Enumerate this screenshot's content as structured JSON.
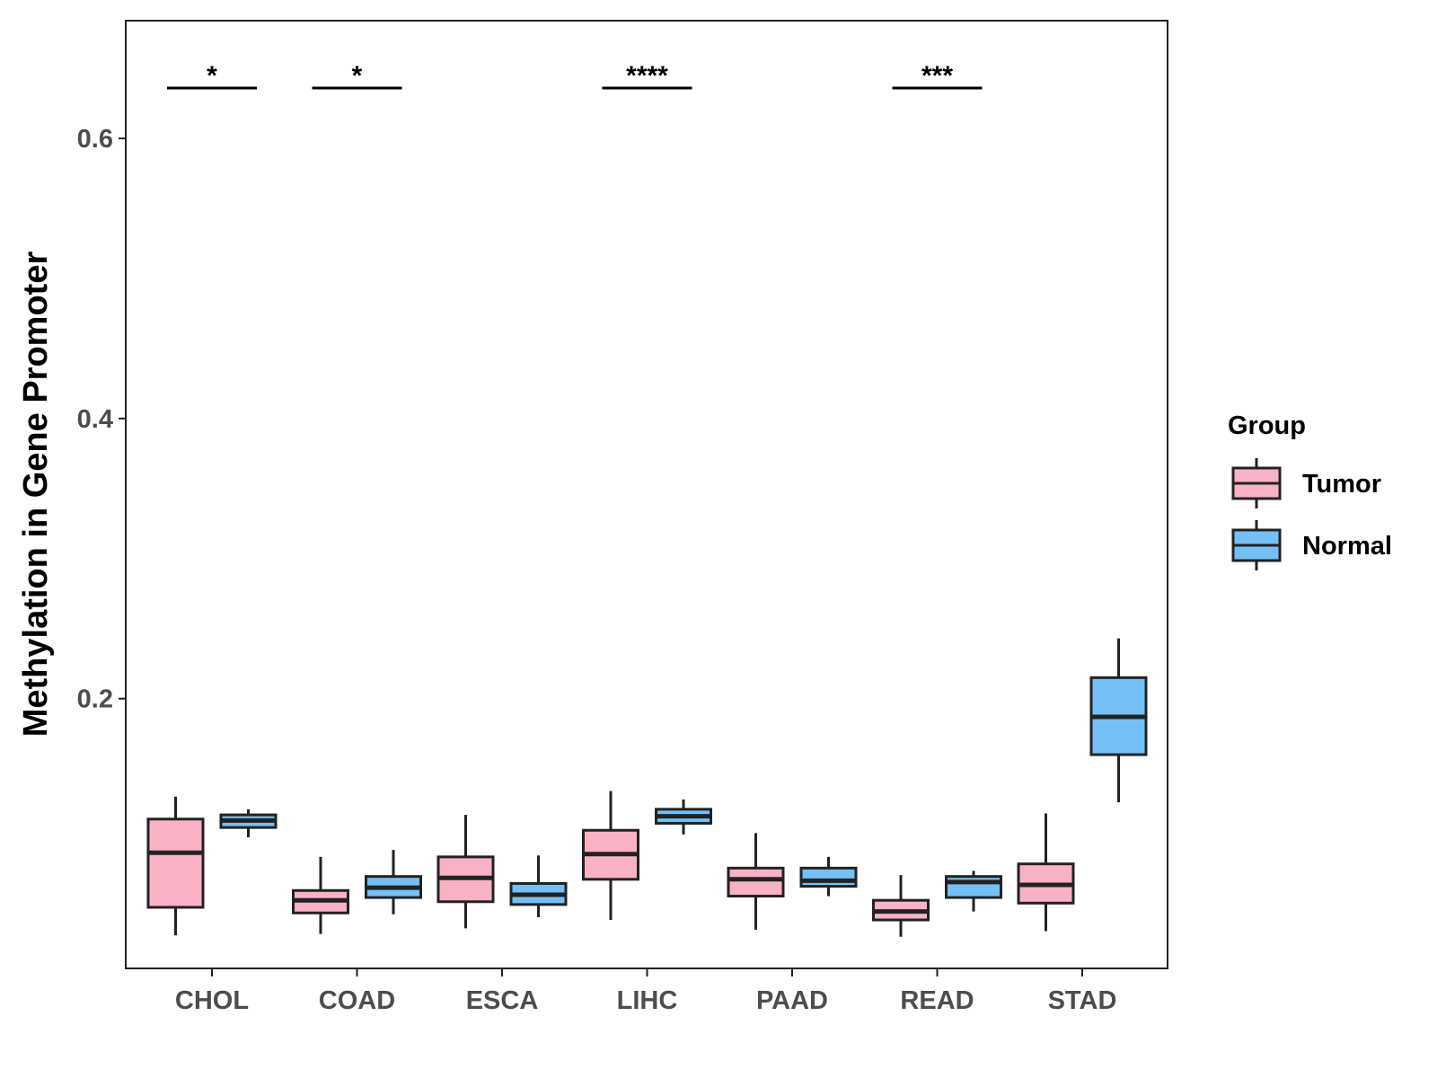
{
  "chart_data": {
    "type": "boxplot",
    "title": "",
    "xlabel": "",
    "ylabel": "Methylation in Gene Promoter",
    "ylim": [
      0.0,
      0.68
    ],
    "yticks": [
      0.2,
      0.4,
      0.6
    ],
    "ytick_labels": [
      "0.2",
      "0.4",
      "0.6"
    ],
    "categories": [
      "CHOL",
      "COAD",
      "ESCA",
      "LIHC",
      "PAAD",
      "READ",
      "STAD"
    ],
    "legend": {
      "title": "Group",
      "position": "right",
      "entries": [
        {
          "name": "Tumor",
          "color": "#f9b2c4"
        },
        {
          "name": "Normal",
          "color": "#74c0f6"
        }
      ]
    },
    "series": [
      {
        "name": "Tumor",
        "color": "#f9b2c4",
        "boxes": [
          {
            "category": "CHOL",
            "whisker_low": 0.031,
            "q1": 0.051,
            "median": 0.09,
            "q3": 0.114,
            "whisker_high": 0.13
          },
          {
            "category": "COAD",
            "whisker_low": 0.032,
            "q1": 0.047,
            "median": 0.056,
            "q3": 0.063,
            "whisker_high": 0.087
          },
          {
            "category": "ESCA",
            "whisker_low": 0.036,
            "q1": 0.055,
            "median": 0.072,
            "q3": 0.087,
            "whisker_high": 0.117
          },
          {
            "category": "LIHC",
            "whisker_low": 0.042,
            "q1": 0.071,
            "median": 0.089,
            "q3": 0.106,
            "whisker_high": 0.134
          },
          {
            "category": "PAAD",
            "whisker_low": 0.035,
            "q1": 0.059,
            "median": 0.071,
            "q3": 0.079,
            "whisker_high": 0.104
          },
          {
            "category": "READ",
            "whisker_low": 0.03,
            "q1": 0.042,
            "median": 0.048,
            "q3": 0.056,
            "whisker_high": 0.074
          },
          {
            "category": "STAD",
            "whisker_low": 0.034,
            "q1": 0.054,
            "median": 0.067,
            "q3": 0.082,
            "whisker_high": 0.118
          }
        ]
      },
      {
        "name": "Normal",
        "color": "#74c0f6",
        "boxes": [
          {
            "category": "CHOL",
            "whisker_low": 0.101,
            "q1": 0.108,
            "median": 0.113,
            "q3": 0.117,
            "whisker_high": 0.121
          },
          {
            "category": "COAD",
            "whisker_low": 0.046,
            "q1": 0.058,
            "median": 0.065,
            "q3": 0.073,
            "whisker_high": 0.092
          },
          {
            "category": "ESCA",
            "whisker_low": 0.044,
            "q1": 0.053,
            "median": 0.06,
            "q3": 0.068,
            "whisker_high": 0.088
          },
          {
            "category": "LIHC",
            "whisker_low": 0.103,
            "q1": 0.111,
            "median": 0.116,
            "q3": 0.121,
            "whisker_high": 0.128
          },
          {
            "category": "PAAD",
            "whisker_low": 0.059,
            "q1": 0.066,
            "median": 0.07,
            "q3": 0.079,
            "whisker_high": 0.087
          },
          {
            "category": "READ",
            "whisker_low": 0.048,
            "q1": 0.058,
            "median": 0.069,
            "q3": 0.073,
            "whisker_high": 0.077
          },
          {
            "category": "STAD",
            "whisker_low": 0.126,
            "q1": 0.16,
            "median": 0.187,
            "q3": 0.215,
            "whisker_high": 0.243
          }
        ]
      }
    ],
    "annotations": [
      {
        "category": "CHOL",
        "label": "*",
        "y": 0.636
      },
      {
        "category": "COAD",
        "label": "*",
        "y": 0.636
      },
      {
        "category": "LIHC",
        "label": "****",
        "y": 0.636
      },
      {
        "category": "READ",
        "label": "***",
        "y": 0.636
      }
    ]
  }
}
